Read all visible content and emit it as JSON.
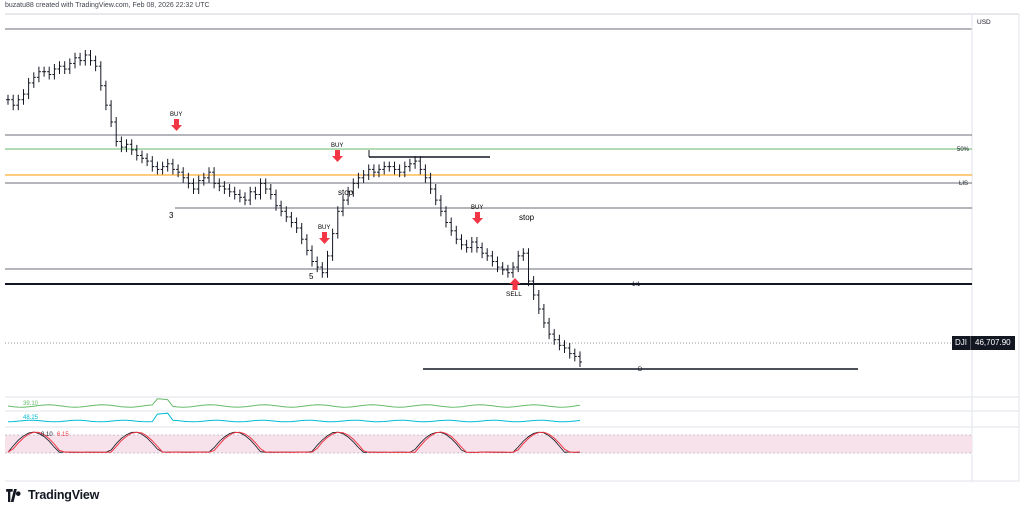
{
  "header": {
    "credit": "buzatu88 created with TradingView.com, Feb 08, 2026 22:32 UTC"
  },
  "currency": "USD",
  "symbol": "DJI",
  "last_price": "46,707.90",
  "brand": "TradingView",
  "colors": {
    "fib50": "#66bb6a",
    "lis": "#ff9800",
    "arrow": "#f23645",
    "rsi": "#66bb6a",
    "indicator2": "#00bcd4",
    "stoch_k": "#131722",
    "stoch_d": "#f23645",
    "stoch_band": "#f7e1ea"
  },
  "level_labels": {
    "fib50": "50%",
    "lis": "LIS",
    "one_to_one": "1:1",
    "target": "D"
  },
  "annotations": {
    "buy": "BUY",
    "sell": "SELL",
    "stop": "stop",
    "wave3": "3",
    "wave5": "5"
  },
  "indicators": {
    "rsi_value": "39.10",
    "ind2_value": "48.25",
    "stoch_k_value": "8.10",
    "stoch_d_value": "6.15"
  },
  "chart_data": {
    "type": "line",
    "title": "",
    "series": [
      {
        "values": [
          80,
          78,
          80,
          82,
          86,
          88,
          90,
          90,
          89,
          91,
          92,
          91,
          93,
          95,
          94,
          96,
          94,
          92,
          85,
          78,
          72,
          65,
          63,
          64,
          62,
          60,
          59,
          58,
          56,
          55,
          56,
          57,
          55,
          54,
          52,
          50,
          48,
          51,
          52,
          54,
          50,
          49,
          48,
          47,
          46,
          45,
          44,
          47,
          46,
          50,
          48,
          46,
          42,
          40,
          38,
          36,
          34,
          30,
          26,
          22,
          20,
          18,
          24,
          32,
          40,
          44,
          47,
          50,
          52,
          53,
          55,
          54,
          55,
          56,
          56,
          55,
          54,
          56,
          57,
          58,
          55,
          52,
          48,
          44,
          40,
          36,
          33,
          30,
          28,
          27,
          29,
          27,
          25,
          24,
          22,
          20,
          19,
          18,
          20,
          24,
          25,
          15,
          10,
          5,
          0,
          -4,
          -6,
          -8,
          -9,
          -11,
          -12,
          -14
        ]
      }
    ]
  }
}
